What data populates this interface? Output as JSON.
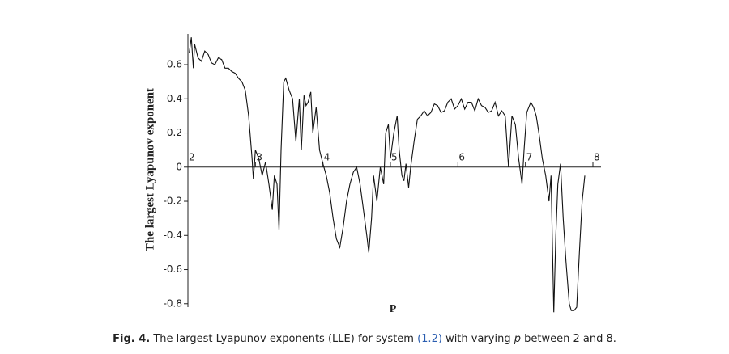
{
  "chart_data": {
    "type": "line",
    "x_label": "P",
    "y_label": "The largest Lyapunov exponent",
    "x": [
      2.02,
      2.05,
      2.08,
      2.1,
      2.15,
      2.2,
      2.25,
      2.3,
      2.35,
      2.4,
      2.45,
      2.5,
      2.55,
      2.6,
      2.65,
      2.7,
      2.75,
      2.8,
      2.85,
      2.9,
      2.95,
      2.97,
      3.0,
      3.05,
      3.1,
      3.15,
      3.2,
      3.25,
      3.28,
      3.32,
      3.35,
      3.38,
      3.42,
      3.45,
      3.5,
      3.55,
      3.6,
      3.65,
      3.68,
      3.72,
      3.75,
      3.78,
      3.82,
      3.85,
      3.9,
      3.95,
      4.0,
      4.05,
      4.1,
      4.15,
      4.2,
      4.25,
      4.3,
      4.35,
      4.4,
      4.45,
      4.5,
      4.55,
      4.6,
      4.65,
      4.68,
      4.72,
      4.75,
      4.8,
      4.85,
      4.9,
      4.93,
      4.97,
      5.0,
      5.05,
      5.1,
      5.13,
      5.17,
      5.2,
      5.23,
      5.27,
      5.3,
      5.35,
      5.4,
      5.45,
      5.5,
      5.55,
      5.6,
      5.65,
      5.7,
      5.75,
      5.8,
      5.85,
      5.9,
      5.95,
      6.0,
      6.05,
      6.1,
      6.15,
      6.2,
      6.25,
      6.3,
      6.35,
      6.4,
      6.45,
      6.5,
      6.55,
      6.6,
      6.65,
      6.7,
      6.75,
      6.8,
      6.85,
      6.9,
      6.95,
      6.98,
      7.02,
      7.08,
      7.12,
      7.16,
      7.2,
      7.25,
      7.3,
      7.35,
      7.38,
      7.42,
      7.45,
      7.48,
      7.52,
      7.56,
      7.6,
      7.65,
      7.68,
      7.72,
      7.76,
      7.8,
      7.84,
      7.88
    ],
    "values": [
      0.67,
      0.76,
      0.58,
      0.72,
      0.64,
      0.62,
      0.68,
      0.66,
      0.61,
      0.6,
      0.64,
      0.63,
      0.58,
      0.58,
      0.56,
      0.55,
      0.52,
      0.5,
      0.45,
      0.3,
      0.05,
      -0.07,
      0.1,
      0.05,
      -0.05,
      0.03,
      -0.1,
      -0.25,
      -0.05,
      -0.1,
      -0.37,
      0.1,
      0.5,
      0.52,
      0.45,
      0.4,
      0.15,
      0.4,
      0.1,
      0.42,
      0.36,
      0.38,
      0.44,
      0.2,
      0.35,
      0.1,
      0.02,
      -0.05,
      -0.15,
      -0.3,
      -0.42,
      -0.47,
      -0.35,
      -0.2,
      -0.1,
      -0.03,
      0.0,
      -0.1,
      -0.25,
      -0.4,
      -0.5,
      -0.3,
      -0.05,
      -0.2,
      0.0,
      -0.1,
      0.2,
      0.25,
      0.05,
      0.2,
      0.3,
      0.1,
      -0.05,
      -0.08,
      0.02,
      -0.12,
      0.0,
      0.15,
      0.28,
      0.3,
      0.33,
      0.3,
      0.32,
      0.37,
      0.36,
      0.32,
      0.33,
      0.38,
      0.4,
      0.34,
      0.36,
      0.4,
      0.34,
      0.38,
      0.38,
      0.33,
      0.4,
      0.36,
      0.35,
      0.32,
      0.33,
      0.38,
      0.3,
      0.33,
      0.3,
      0.0,
      0.3,
      0.25,
      0.05,
      -0.1,
      0.1,
      0.32,
      0.38,
      0.35,
      0.3,
      0.2,
      0.05,
      -0.05,
      -0.2,
      -0.05,
      -0.85,
      -0.4,
      -0.1,
      0.02,
      -0.3,
      -0.55,
      -0.8,
      -0.84,
      -0.84,
      -0.82,
      -0.5,
      -0.2,
      -0.05
    ],
    "color": "#111111",
    "xlim": [
      2,
      8.12
    ],
    "xticks": [
      2,
      3,
      4,
      5,
      6,
      7,
      8
    ],
    "ylim": [
      -0.82,
      0.78
    ],
    "yticks": [
      0.6,
      0.4,
      0.2,
      0,
      -0.2,
      -0.4,
      -0.6,
      -0.8
    ]
  },
  "caption": {
    "label": "Fig. 4.",
    "segments": [
      "The largest Lyapunov exponents (LLE) for system",
      "(1.2)",
      "with varying",
      "p",
      "between 2 and 8."
    ]
  }
}
